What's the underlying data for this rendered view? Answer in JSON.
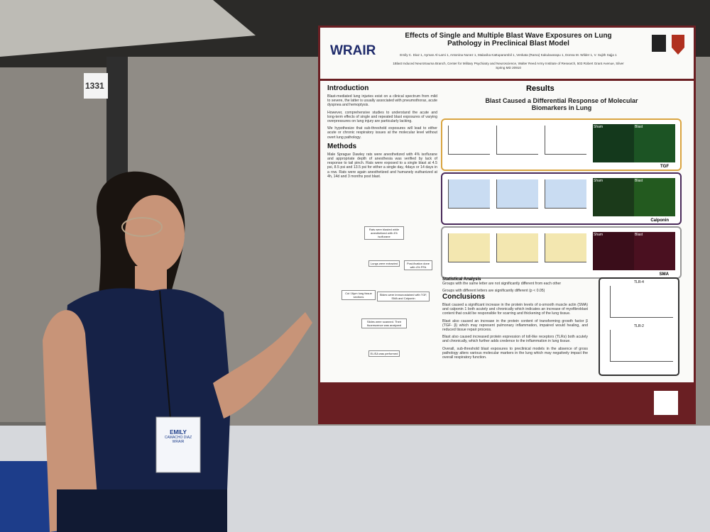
{
  "booth_number": "1331",
  "poster": {
    "logo": "WRAIR",
    "title": "Effects of Single and Multiple Blast Wave Exposures on Lung Pathology in Preclinical Blast Model",
    "authors": "Emily C. Diaz 1, Ayman Al-Lami 1, Antonina Nunez 1, Malavika Kattuparambil 1, Venkata (Rama) Kakulavarapu 1, Donna M. Wilder 1, V. Sujith Sajja 1",
    "affiliation": "1Blast Induced Neurotrauma Branch, Center for Military Psychiatry and Neuroscience, Walter Reed Army Institute of Research, 503 Robert Grant Avenue, Silver Spring MD 20910",
    "introduction": {
      "heading": "Introduction",
      "paragraphs": [
        "Blast-mediated lung injuries exist on a clinical spectrum from mild to severe, the latter is usually associated with pneumothorax, acute dyspnea and hemoptysis.",
        "However, comprehensive studies to understand the acute and long-term effects of single and repeated blast exposures of varying overpressures on lung injury are particularly lacking.",
        "We hypothesize that sub-threshold exposures will lead to either acute or chronic respiratory issues at the molecular level without overt lung pathology."
      ]
    },
    "methods": {
      "heading": "Methods",
      "paragraphs": [
        "Male Sprague Dawley rats were anesthetized with 4% isoflurane and appropriate depth of anesthesia was verified by lack of response to tail pinch. Rats were exposed to a single blast at 4.5 psi, 8.5 psi and 13.5 psi for either a single day, 4days or 14 days in a row. Rats were again anesthetized and humanely euthanized at 4h, 14d and 3 months post blast."
      ],
      "steps": [
        "Rats were blasted while anesthetized with 4% isoflurane",
        "Lungs were extracted",
        "Post-fixation done with 4% PFA",
        "Cut 16µm lung tissue sections",
        "Slides were immunostained with TGF, SMA and Calponin",
        "Slides were scanned. Their fluorescence was analyzed",
        "ELISA was performed"
      ]
    },
    "results": {
      "heading": "Results",
      "subheading": "Blast Caused a Differential Response of Molecular Biomarkers in Lung",
      "panels": [
        "TGF",
        "Calponin",
        "SMA"
      ],
      "image_labels": [
        "Sham",
        "Blast"
      ],
      "tlr_labels": [
        "TLR-4",
        "TLR-2"
      ]
    },
    "statistical_analysis": {
      "heading": "Statistical Analysis",
      "lines": [
        "Groups with the same letter are not significantly different from each other",
        "Groups with different letters are significantly different (p < 0.05)"
      ]
    },
    "conclusions": {
      "heading": "Conclusions",
      "paragraphs": [
        "Blast caused a significant increase in the protein levels of α-smooth muscle actin (SMA) and calponin 1 both acutely and chronically which indicates an increase of myofibroblast content that could be responsible for scarring and thickening of the lung tissue.",
        "Blast also caused an increase in the protein content of transforming growth factor β (TGF- β) which may represent pulmonary inflammation, impaired would healing, and reduced tissue repair process.",
        "Blast also caused increased protein expression of toll-like receptors (TLRs) both acutely and chronically, which further adds credence to the inflammation in lung tissue.",
        "Overall, sub-threshold blast exposures to preclinical models in the absence of gross pathology alters various molecular markers in the lung which may negatively impact the overall respiratory function."
      ]
    }
  },
  "badge": {
    "name": "EMILY",
    "surname": "CAMACHO DIAZ",
    "org": "WRAIR"
  }
}
